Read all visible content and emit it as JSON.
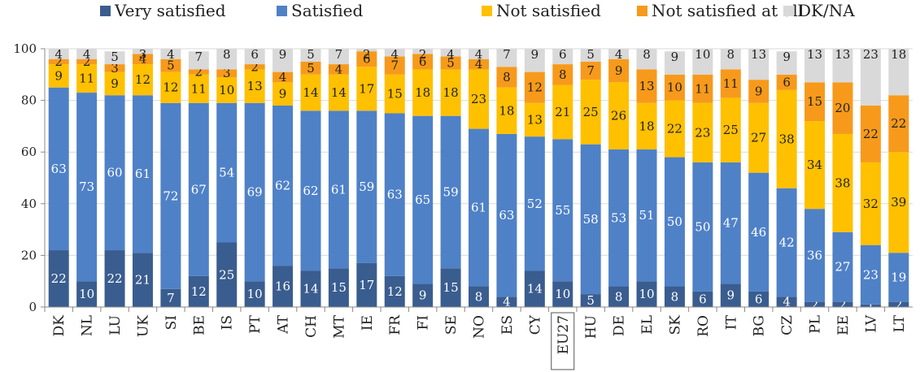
{
  "chart_data": {
    "type": "bar",
    "stacked": true,
    "ylim": [
      0,
      100
    ],
    "yticks": [
      0,
      20,
      40,
      60,
      80,
      100
    ],
    "grid": true,
    "legend_position": "top",
    "highlight_category": "EU27",
    "categories": [
      "DK",
      "NL",
      "LU",
      "UK",
      "SI",
      "BE",
      "IS",
      "PT",
      "AT",
      "CH",
      "MT",
      "IE",
      "FR",
      "FI",
      "SE",
      "NO",
      "ES",
      "CY",
      "EU27",
      "HU",
      "DE",
      "EL",
      "SK",
      "RO",
      "IT",
      "BG",
      "CZ",
      "PL",
      "EE",
      "LV",
      "LT"
    ],
    "series": [
      {
        "name": "Very satisfied",
        "color": "#3a5d8f",
        "label_color": "#ffffff",
        "values": [
          22,
          10,
          22,
          21,
          7,
          12,
          25,
          10,
          16,
          14,
          15,
          17,
          12,
          9,
          15,
          8,
          4,
          14,
          10,
          5,
          8,
          10,
          8,
          6,
          9,
          6,
          4,
          2,
          2,
          1,
          2
        ]
      },
      {
        "name": "Satisfied",
        "color": "#4f81c7",
        "label_color": "#ffffff",
        "values": [
          63,
          73,
          60,
          61,
          72,
          67,
          54,
          69,
          62,
          62,
          61,
          59,
          63,
          65,
          59,
          61,
          63,
          52,
          55,
          58,
          53,
          51,
          50,
          50,
          47,
          46,
          42,
          36,
          27,
          23,
          19
        ]
      },
      {
        "name": "Not satisfied",
        "color": "#ffc000",
        "label_color": "#222222",
        "values": [
          9,
          11,
          9,
          12,
          12,
          11,
          10,
          13,
          9,
          14,
          14,
          17,
          15,
          18,
          18,
          23,
          18,
          13,
          21,
          25,
          26,
          18,
          22,
          23,
          25,
          27,
          38,
          34,
          38,
          32,
          39
        ]
      },
      {
        "name": "Not satisfied at all",
        "color": "#f79a1b",
        "label_color": "#222222",
        "values": [
          2,
          2,
          3,
          4,
          5,
          2,
          3,
          2,
          4,
          5,
          4,
          6,
          7,
          6,
          5,
          4,
          8,
          12,
          8,
          7,
          9,
          13,
          10,
          11,
          11,
          9,
          6,
          15,
          20,
          22,
          22
        ]
      },
      {
        "name": "DK/NA",
        "color": "#d9d9d9",
        "label_color": "#222222",
        "values": [
          4,
          4,
          5,
          3,
          4,
          7,
          8,
          6,
          9,
          5,
          7,
          2,
          4,
          2,
          4,
          4,
          7,
          9,
          6,
          5,
          4,
          8,
          9,
          10,
          8,
          13,
          9,
          13,
          13,
          23,
          18
        ]
      }
    ]
  }
}
